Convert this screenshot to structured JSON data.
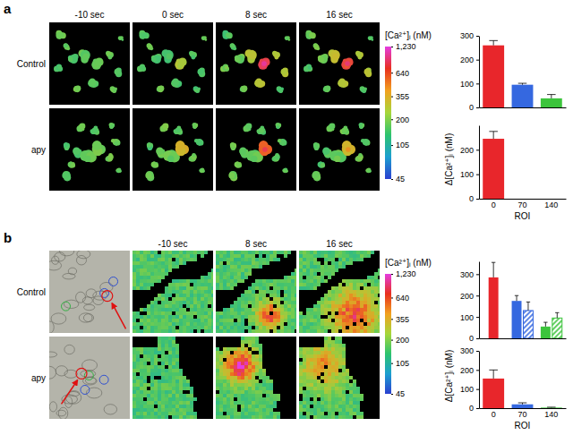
{
  "chart_data": [
    {
      "type": "bar",
      "categories": [
        "0",
        "70",
        "140"
      ],
      "series": [
        {
          "values": [
            260,
            95,
            38
          ],
          "errors": [
            20,
            6,
            16
          ],
          "colors": [
            "#e8262b",
            "#3568e0",
            "#3cc43c"
          ],
          "marker": "solid"
        }
      ],
      "ylim": [
        0,
        300
      ],
      "yticks": [
        0,
        100,
        200,
        300
      ],
      "tick_labels": "y"
    },
    {
      "type": "bar",
      "categories": [
        "0",
        "70",
        "140"
      ],
      "xlabel": "ROI",
      "ylabel": "Δ[Ca²⁺]ᵢ (nM)",
      "series": [
        {
          "values": [
            245,
            0,
            0
          ],
          "errors": [
            30,
            null,
            null
          ],
          "colors": [
            "#e8262b",
            "#3568e0",
            "#3cc43c"
          ],
          "marker": "solid"
        }
      ],
      "ylim": [
        0,
        300
      ],
      "yticks": [
        0,
        100,
        200
      ]
    },
    {
      "type": "bar",
      "categories": [
        "0",
        "70",
        "140"
      ],
      "series": [
        {
          "values": [
            285,
            175,
            55
          ],
          "errors": [
            70,
            25,
            20
          ],
          "colors": [
            "#e8262b",
            "#3568e0",
            "#3cc43c"
          ],
          "marker": "solid"
        },
        {
          "values": [
            null,
            130,
            95
          ],
          "errors": [
            null,
            40,
            25
          ],
          "colors": [
            "#e8262b",
            "#3568e0",
            "#3cc43c"
          ],
          "marker": "hatched"
        }
      ],
      "ylim": [
        0,
        360
      ],
      "yticks": [
        0,
        100,
        200,
        300
      ],
      "tick_labels": "y"
    },
    {
      "type": "bar",
      "categories": [
        "0",
        "70",
        "140"
      ],
      "xlabel": "ROI",
      "ylabel": "Δ[Ca²⁺]ᵢ (nM)",
      "series": [
        {
          "values": [
            155,
            20,
            3
          ],
          "errors": [
            45,
            8,
            2
          ],
          "colors": [
            "#e8262b",
            "#3568e0",
            "#3cc43c"
          ],
          "marker": "solid"
        }
      ],
      "ylim": [
        0,
        300
      ],
      "yticks": [
        0,
        100,
        200,
        300
      ]
    }
  ],
  "panels": [
    {
      "label": "a",
      "times": [
        "-10 sec",
        "0 sec",
        "8 sec",
        "16 sec"
      ],
      "rows": [
        "Control",
        "apy"
      ]
    },
    {
      "label": "b",
      "times": [
        "-10 sec",
        "8 sec",
        "16 sec"
      ],
      "rows": [
        "Control",
        "apy"
      ]
    }
  ],
  "colorbar": {
    "title": "[Ca²⁺]ᵢ (nM)",
    "range": [
      45,
      1230
    ],
    "ticks": [
      45,
      105,
      200,
      355,
      640,
      {
        "value": 1230,
        "label": "1,230"
      }
    ],
    "log": true
  }
}
